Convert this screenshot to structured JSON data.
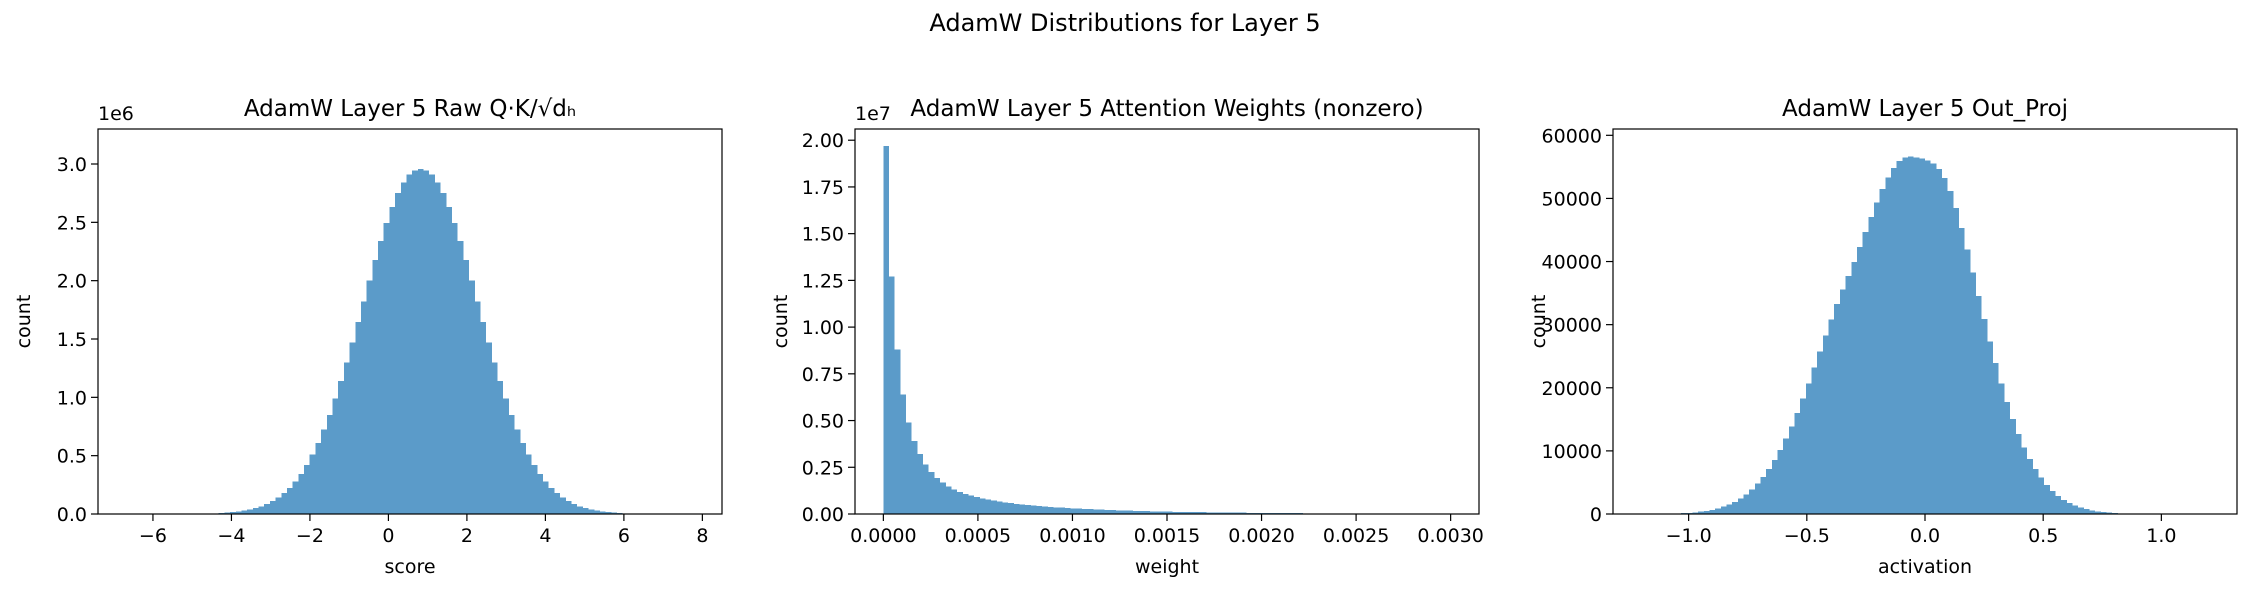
{
  "figure": {
    "suptitle": "AdamW Distributions for Layer 5",
    "bar_color": "#5b9bc9"
  },
  "chart_data": [
    {
      "type": "bar",
      "title": "AdamW Layer 5 Raw Q·K/√dₕ",
      "xlabel": "score",
      "ylabel": "count",
      "exponent_label": "1e6",
      "xlim": [
        -7.4,
        8.5
      ],
      "ylim": [
        0,
        3.3
      ],
      "x_ticks": [
        -6,
        -4,
        -2,
        0,
        2,
        4,
        6,
        8
      ],
      "x_tick_labels": [
        "−6",
        "−4",
        "−2",
        "0",
        "2",
        "4",
        "6",
        "8"
      ],
      "y_ticks": [
        0,
        0.5,
        1.0,
        1.5,
        2.0,
        2.5,
        3.0
      ],
      "y_tick_labels": [
        "0.0",
        "0.5",
        "1.0",
        "1.5",
        "2.0",
        "2.5",
        "3.0"
      ],
      "y_units": "millions",
      "bin_range": [
        -6.5,
        8.0
      ],
      "bins": 100,
      "values": [
        2e-05,
        3e-05,
        5e-05,
        8e-05,
        0.00012,
        0.00019,
        0.00029,
        0.00044,
        0.00065,
        0.00096,
        0.0014,
        0.002,
        0.0029,
        0.0041,
        0.0058,
        0.0081,
        0.0112,
        0.0154,
        0.021,
        0.0284,
        0.038,
        0.0504,
        0.0662,
        0.0861,
        0.1109,
        0.1417,
        0.1793,
        0.2249,
        0.2796,
        0.3445,
        0.4205,
        0.5085,
        0.6091,
        0.7226,
        0.8491,
        0.9881,
        1.1388,
        1.2998,
        1.4692,
        1.6447,
        1.8233,
        2.0016,
        2.1759,
        2.342,
        2.4957,
        2.6328,
        2.7494,
        2.842,
        2.9079,
        2.9449,
        2.9556,
        2.9449,
        2.9079,
        2.842,
        2.7494,
        2.6328,
        2.4957,
        2.342,
        2.1759,
        2.0016,
        1.8233,
        1.6447,
        1.4692,
        1.2998,
        1.1388,
        0.9881,
        0.8491,
        0.7226,
        0.6091,
        0.5085,
        0.4205,
        0.3445,
        0.2796,
        0.2249,
        0.1793,
        0.1417,
        0.1109,
        0.0861,
        0.0662,
        0.0504,
        0.038,
        0.0284,
        0.021,
        0.0154,
        0.0112,
        0.0081,
        0.0058,
        0.0041,
        0.0029,
        0.002,
        0.0014,
        0.00096,
        0.00065,
        0.00044,
        0.00029,
        0.00019,
        0.00012,
        8e-05,
        5e-05,
        3e-05
      ]
    },
    {
      "type": "bar",
      "title": "AdamW Layer 5 Attention Weights (nonzero)",
      "xlabel": "weight",
      "ylabel": "count",
      "exponent_label": "1e7",
      "xlim": [
        -0.00015,
        0.00315
      ],
      "ylim": [
        0,
        2.06
      ],
      "x_ticks": [
        0,
        0.0005,
        0.001,
        0.0015,
        0.002,
        0.0025,
        0.003
      ],
      "x_tick_labels": [
        "0.0000",
        "0.0005",
        "0.0010",
        "0.0015",
        "0.0020",
        "0.0025",
        "0.0030"
      ],
      "y_ticks": [
        0,
        0.25,
        0.5,
        0.75,
        1.0,
        1.25,
        1.5,
        1.75,
        2.0
      ],
      "y_tick_labels": [
        "0.00",
        "0.25",
        "0.50",
        "0.75",
        "1.00",
        "1.25",
        "1.50",
        "1.75",
        "2.00"
      ],
      "y_units": "tens of millions",
      "bin_range": [
        0,
        0.003
      ],
      "bins": 100,
      "values": [
        1.97,
        1.27,
        0.88,
        0.64,
        0.49,
        0.39,
        0.32,
        0.265,
        0.225,
        0.193,
        0.168,
        0.148,
        0.132,
        0.119,
        0.108,
        0.098,
        0.09,
        0.083,
        0.077,
        0.071,
        0.066,
        0.062,
        0.058,
        0.054,
        0.051,
        0.048,
        0.045,
        0.042,
        0.04,
        0.038,
        0.036,
        0.034,
        0.032,
        0.03,
        0.029,
        0.027,
        0.026,
        0.025,
        0.023,
        0.022,
        0.021,
        0.02,
        0.019,
        0.018,
        0.017,
        0.016,
        0.015,
        0.0145,
        0.014,
        0.013,
        0.0125,
        0.012,
        0.0115,
        0.011,
        0.0105,
        0.01,
        0.0095,
        0.009,
        0.0086,
        0.0082,
        0.0078,
        0.0074,
        0.007,
        0.0067,
        0.0064,
        0.0061,
        0.0058,
        0.0055,
        0.0052,
        0.005,
        0.0047,
        0.0045,
        0.0043,
        0.0041,
        0.0039,
        0.0037,
        0.0035,
        0.0033,
        0.0031,
        0.003,
        0.0028,
        0.0027,
        0.0025,
        0.0024,
        0.0023,
        0.0022,
        0.0021,
        0.002,
        0.0019,
        0.0018,
        0.0017,
        0.0016,
        0.0015,
        0.0014,
        0.0013,
        0.0012,
        0.0011,
        0.001,
        0.0009,
        0.0008
      ]
    },
    {
      "type": "bar",
      "title": "AdamW Layer 5 Out_Proj",
      "xlabel": "activation",
      "ylabel": "count",
      "exponent_label": "",
      "xlim": [
        -1.32,
        1.32
      ],
      "ylim": [
        0,
        61000
      ],
      "x_ticks": [
        -1.0,
        -0.5,
        0,
        0.5,
        1.0
      ],
      "x_tick_labels": [
        "−1.0",
        "−0.5",
        "0.0",
        "0.5",
        "1.0"
      ],
      "y_ticks": [
        0,
        10000,
        20000,
        30000,
        40000,
        50000,
        60000
      ],
      "y_tick_labels": [
        "0",
        "10000",
        "20000",
        "30000",
        "40000",
        "50000",
        "60000"
      ],
      "y_units": "count",
      "bin_range": [
        -1.2,
        1.2
      ],
      "bins": 100,
      "values": [
        9,
        14,
        21,
        31,
        45,
        65,
        94,
        134,
        188,
        262,
        361,
        490,
        659,
        877,
        1155,
        1504,
        1937,
        2470,
        3116,
        3892,
        4810,
        5885,
        7130,
        8551,
        10154,
        11940,
        13902,
        16031,
        18309,
        20711,
        23206,
        25757,
        28317,
        30838,
        33269,
        35554,
        37741,
        39960,
        42268,
        44652,
        47040,
        49346,
        51479,
        53343,
        54847,
        55911,
        56473,
        56620,
        56473,
        56287,
        56016,
        55548,
        54688,
        53243,
        51147,
        48468,
        45329,
        41873,
        38234,
        34531,
        30861,
        27295,
        23887,
        20685,
        17729,
        15044,
        12641,
        10520,
        8676,
        7093,
        5745,
        4612,
        3667,
        2888,
        2252,
        1740,
        1331,
        1007,
        755,
        560,
        412,
        299,
        215,
        153,
        107,
        74,
        51,
        35,
        23,
        15,
        10,
        7,
        4,
        3,
        2,
        1,
        1,
        1,
        0,
        0
      ]
    }
  ]
}
